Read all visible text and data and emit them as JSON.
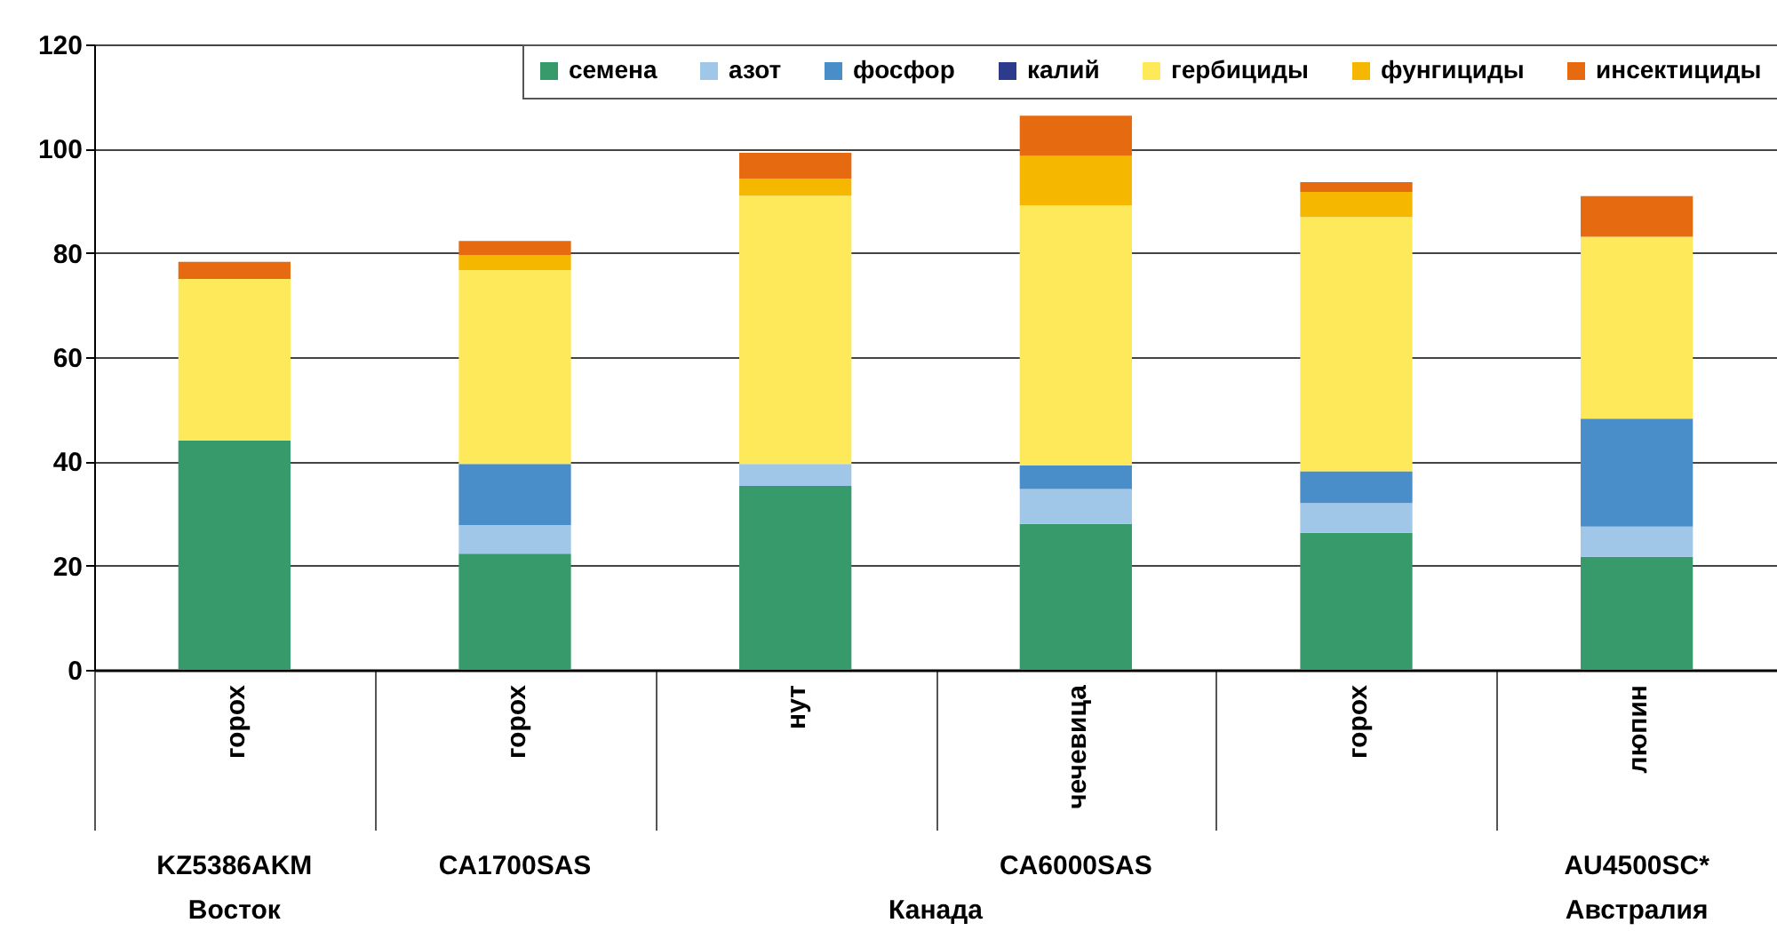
{
  "chart_data": {
    "type": "bar",
    "stacked": true,
    "categories": [
      "горох",
      "горох",
      "нут",
      "чечевица",
      "горох",
      "люпин"
    ],
    "series": [
      {
        "name": "семена",
        "color": "#379a6a",
        "values": [
          44,
          22.3,
          35.3,
          28,
          26.3,
          21.7
        ]
      },
      {
        "name": "азот",
        "color": "#a0c6e8",
        "values": [
          0,
          5.5,
          4.2,
          6.7,
          5.7,
          5.8
        ]
      },
      {
        "name": "фосфор",
        "color": "#4a8ec9",
        "values": [
          0,
          11.7,
          0,
          4.5,
          6.1,
          20.7
        ]
      },
      {
        "name": "калий",
        "color": "#2e3a8c",
        "values": [
          0,
          0,
          0,
          0,
          0,
          0
        ]
      },
      {
        "name": "гербициды",
        "color": "#fde95a",
        "values": [
          31,
          37.2,
          51.5,
          49.9,
          48.8,
          34.9
        ]
      },
      {
        "name": "фунгициды",
        "color": "#f5b700",
        "values": [
          0,
          2.9,
          3.2,
          9.5,
          4.8,
          0
        ]
      },
      {
        "name": "инсектициды",
        "color": "#e66a10",
        "values": [
          3.3,
          2.7,
          5,
          7.7,
          1.9,
          7.8
        ]
      }
    ],
    "ylim": [
      0,
      120
    ],
    "yticks": [
      0,
      20,
      40,
      60,
      80,
      100,
      120
    ],
    "grid": "y",
    "legend": "top right",
    "annotations": [
      "KZ5386AKM",
      "CA1700SAS",
      "CA6000SAS",
      "AU4500SC*",
      "Восток",
      "Канада",
      "Австралия"
    ]
  }
}
